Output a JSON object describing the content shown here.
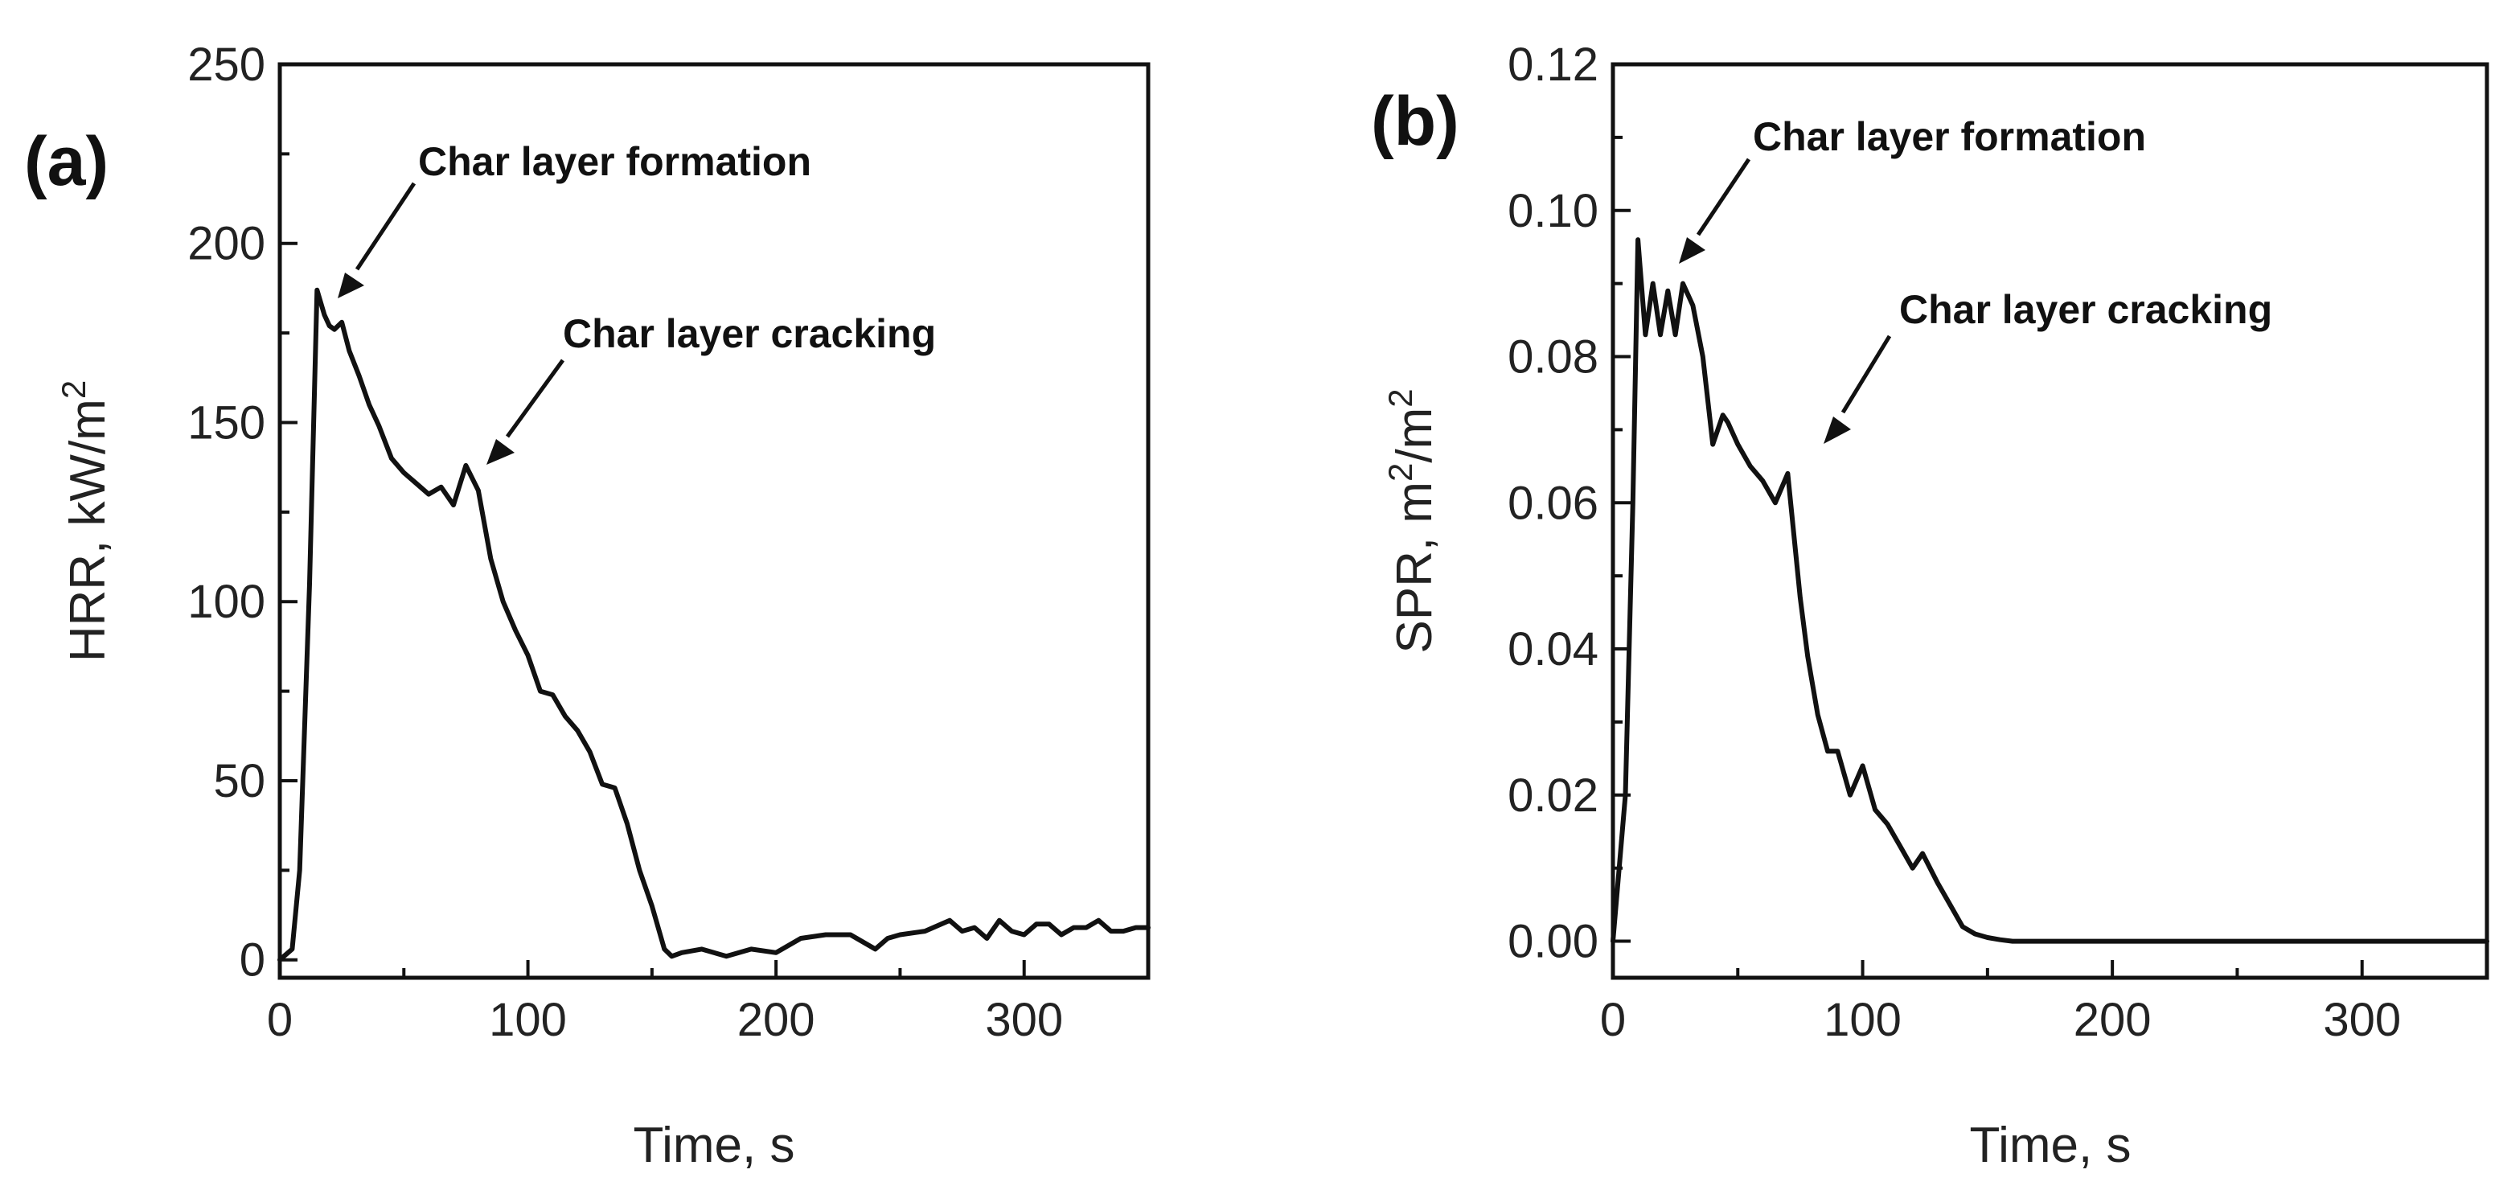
{
  "chart_data": [
    {
      "type": "line",
      "panel_label": "(a)",
      "title": "",
      "xlabel": "Time, s",
      "ylabel_main": "HRR, kW/m",
      "ylabel_sup": "2",
      "xlim": [
        0,
        350
      ],
      "ylim": [
        -5,
        250
      ],
      "xticks": [
        0,
        100,
        200,
        300
      ],
      "yticks": [
        0,
        50,
        100,
        150,
        200,
        250
      ],
      "xminor": [
        50,
        150,
        250,
        350
      ],
      "yminor": [
        25,
        75,
        125,
        175,
        225
      ],
      "series": [
        {
          "name": "HRR",
          "x": [
            0,
            5,
            8,
            12,
            15,
            18,
            20,
            22,
            25,
            28,
            32,
            36,
            40,
            45,
            50,
            55,
            60,
            65,
            70,
            75,
            80,
            85,
            90,
            95,
            100,
            105,
            110,
            115,
            120,
            125,
            130,
            135,
            140,
            145,
            150,
            155,
            158,
            162,
            170,
            180,
            190,
            200,
            210,
            220,
            230,
            240,
            245,
            250,
            260,
            270,
            275,
            280,
            285,
            290,
            295,
            300,
            305,
            310,
            315,
            320,
            325,
            330,
            335,
            340,
            345,
            350
          ],
          "y": [
            0,
            3,
            25,
            105,
            187,
            180,
            177,
            176,
            178,
            170,
            163,
            155,
            149,
            140,
            136,
            133,
            130,
            132,
            127,
            138,
            131,
            112,
            100,
            92,
            85,
            75,
            74,
            68,
            64,
            58,
            49,
            48,
            38,
            25,
            15,
            3,
            1,
            2,
            3,
            1,
            3,
            2,
            6,
            7,
            7,
            3,
            6,
            7,
            8,
            11,
            8,
            9,
            6,
            11,
            8,
            7,
            10,
            10,
            7,
            9,
            9,
            11,
            8,
            8,
            9,
            9
          ]
        }
      ],
      "annotations": [
        {
          "text": "Char layer formation",
          "target": [
            22,
            186
          ]
        },
        {
          "text": "Char layer cracking",
          "target": [
            79,
            138
          ]
        }
      ]
    },
    {
      "type": "line",
      "panel_label": "(b)",
      "title": "",
      "xlabel": "Time, s",
      "ylabel_pre": "SPR, m",
      "ylabel_sup1": "2",
      "ylabel_mid": "/m",
      "ylabel_sup2": "2",
      "xlim": [
        0,
        350
      ],
      "ylim": [
        -0.005,
        0.12
      ],
      "xticks": [
        0,
        100,
        200,
        300
      ],
      "yticks": [
        0.0,
        0.02,
        0.04,
        0.06,
        0.08,
        0.1,
        0.12
      ],
      "ytick_labels": [
        "0.00",
        "0.02",
        "0.04",
        "0.06",
        "0.08",
        "0.10",
        "0.12"
      ],
      "xminor": [
        50,
        150,
        250,
        350
      ],
      "yminor": [
        0.01,
        0.03,
        0.05,
        0.07,
        0.09,
        0.11
      ],
      "series": [
        {
          "name": "SPR",
          "x": [
            0,
            5,
            8,
            10,
            13,
            16,
            19,
            22,
            25,
            28,
            32,
            36,
            40,
            44,
            46,
            50,
            55,
            60,
            65,
            70,
            75,
            78,
            82,
            86,
            90,
            95,
            100,
            105,
            110,
            115,
            120,
            124,
            130,
            135,
            140,
            145,
            150,
            155,
            160,
            170,
            200,
            250,
            300,
            350
          ],
          "y": [
            0.0,
            0.02,
            0.06,
            0.096,
            0.083,
            0.09,
            0.083,
            0.089,
            0.083,
            0.09,
            0.087,
            0.08,
            0.068,
            0.072,
            0.071,
            0.068,
            0.065,
            0.063,
            0.06,
            0.064,
            0.047,
            0.039,
            0.031,
            0.026,
            0.026,
            0.02,
            0.024,
            0.018,
            0.016,
            0.013,
            0.01,
            0.012,
            0.008,
            0.005,
            0.002,
            0.001,
            0.0005,
            0.0002,
            0.0,
            0.0,
            0.0,
            0.0,
            0.0,
            0.0
          ]
        }
      ],
      "annotations": [
        {
          "text": "Char layer formation",
          "target": [
            28,
            0.09
          ]
        },
        {
          "text": "Char layer cracking",
          "target": [
            77,
            0.068
          ]
        }
      ]
    }
  ]
}
